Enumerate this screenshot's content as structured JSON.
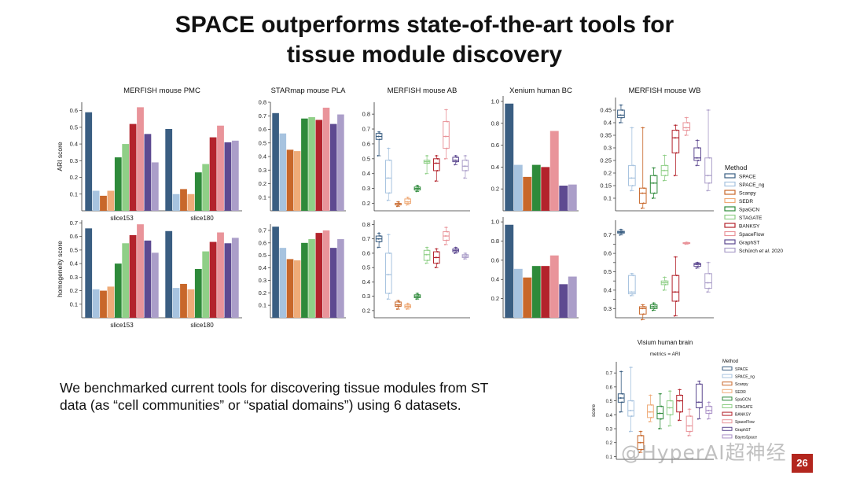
{
  "slide": {
    "title_line1": "SPACE outperforms state-of-the-art tools for",
    "title_line2": "tissue module discovery",
    "body_line1": "We benchmarked current tools for discovering tissue modules from ST",
    "body_line2": "data (as “cell communities” or “spatial domains”) using 6 datasets.",
    "page_number": "26",
    "watermark": "@HyperAI超神经"
  },
  "colors": {
    "SPACE": "#3a5e82",
    "SPACE_ng": "#a7c3df",
    "Scanpy": "#c8672a",
    "SEDR": "#efab78",
    "SpaGCN": "#2e8a3a",
    "STAGATE": "#8fcf87",
    "BANKSY": "#b3232c",
    "SpaceFlow": "#e9949a",
    "GraphST": "#5e4a91",
    "Schurch": "#ab9ec9",
    "BayesSpace": "#a98fc7"
  },
  "legend": {
    "title": "Method",
    "items": [
      "SPACE",
      "SPACE_ng",
      "Scanpy",
      "SEDR",
      "SpaGCN",
      "STAGATE",
      "BANKSY",
      "SpaceFlow",
      "GraphST"
    ],
    "last_item_prefix": "Schürch ",
    "last_item_italic": "et al.",
    "last_item_suffix": " 2020"
  },
  "chart_data": [
    {
      "id": "pmc_ari",
      "type": "bar",
      "title": "MERFISH mouse PMC",
      "ylabel": "ARI score",
      "ylim": [
        0,
        0.65
      ],
      "yticks": [
        0.1,
        0.2,
        0.3,
        0.4,
        0.5,
        0.6
      ],
      "categories": [
        "slice153",
        "slice180"
      ],
      "series": [
        {
          "name": "SPACE",
          "values": [
            0.59,
            0.49
          ]
        },
        {
          "name": "SPACE_ng",
          "values": [
            0.12,
            0.1
          ]
        },
        {
          "name": "Scanpy",
          "values": [
            0.09,
            0.13
          ]
        },
        {
          "name": "SEDR",
          "values": [
            0.12,
            0.1
          ]
        },
        {
          "name": "SpaGCN",
          "values": [
            0.32,
            0.23
          ]
        },
        {
          "name": "STAGATE",
          "values": [
            0.4,
            0.28
          ]
        },
        {
          "name": "BANKSY",
          "values": [
            0.52,
            0.44
          ]
        },
        {
          "name": "SpaceFlow",
          "values": [
            0.62,
            0.51
          ]
        },
        {
          "name": "GraphST",
          "values": [
            0.46,
            0.41
          ]
        },
        {
          "name": "Schürch et al. 2020",
          "values": [
            0.29,
            0.42
          ]
        }
      ]
    },
    {
      "id": "pla_ari",
      "type": "bar",
      "title": "STARmap mouse PLA",
      "ylabel": "",
      "ylim": [
        0,
        0.8
      ],
      "yticks": [
        0.1,
        0.2,
        0.3,
        0.4,
        0.5,
        0.6,
        0.7,
        0.8
      ],
      "categories": [
        ""
      ],
      "series": [
        {
          "name": "SPACE",
          "values": [
            0.72
          ]
        },
        {
          "name": "SPACE_ng",
          "values": [
            0.57
          ]
        },
        {
          "name": "Scanpy",
          "values": [
            0.45
          ]
        },
        {
          "name": "SEDR",
          "values": [
            0.44
          ]
        },
        {
          "name": "SpaGCN",
          "values": [
            0.68
          ]
        },
        {
          "name": "STAGATE",
          "values": [
            0.69
          ]
        },
        {
          "name": "BANKSY",
          "values": [
            0.67
          ]
        },
        {
          "name": "SpaceFlow",
          "values": [
            0.76
          ]
        },
        {
          "name": "GraphST",
          "values": [
            0.64
          ]
        },
        {
          "name": "Schürch et al. 2020",
          "values": [
            0.71
          ]
        }
      ]
    },
    {
      "id": "ab_ari",
      "type": "box",
      "title": "MERFISH mouse AB",
      "ylabel": "",
      "ylim": [
        0.15,
        0.88
      ],
      "yticks": [
        0.2,
        0.3,
        0.4,
        0.5,
        0.6,
        0.7,
        0.8
      ],
      "series": [
        {
          "name": "SPACE",
          "min": 0.52,
          "q1": 0.63,
          "median": 0.65,
          "q3": 0.67,
          "max": 0.68
        },
        {
          "name": "SPACE_ng",
          "min": 0.22,
          "q1": 0.27,
          "median": 0.37,
          "q3": 0.49,
          "max": 0.57
        },
        {
          "name": "Scanpy",
          "min": 0.18,
          "q1": 0.19,
          "median": 0.19,
          "q3": 0.2,
          "max": 0.21
        },
        {
          "name": "SEDR",
          "min": 0.19,
          "q1": 0.2,
          "median": 0.21,
          "q3": 0.23,
          "max": 0.24
        },
        {
          "name": "SpaGCN",
          "min": 0.28,
          "q1": 0.29,
          "median": 0.3,
          "q3": 0.31,
          "max": 0.32
        },
        {
          "name": "STAGATE",
          "min": 0.4,
          "q1": 0.47,
          "median": 0.48,
          "q3": 0.49,
          "max": 0.52
        },
        {
          "name": "BANKSY",
          "min": 0.35,
          "q1": 0.42,
          "median": 0.47,
          "q3": 0.5,
          "max": 0.52
        },
        {
          "name": "SpaceFlow",
          "min": 0.5,
          "q1": 0.57,
          "median": 0.65,
          "q3": 0.75,
          "max": 0.83
        },
        {
          "name": "GraphST",
          "min": 0.46,
          "q1": 0.48,
          "median": 0.49,
          "q3": 0.51,
          "max": 0.52
        },
        {
          "name": "Schürch et al. 2020",
          "min": 0.37,
          "q1": 0.42,
          "median": 0.45,
          "q3": 0.49,
          "max": 0.52
        }
      ]
    },
    {
      "id": "bc_ari",
      "type": "bar",
      "title": "Xenium human BC",
      "ylabel": "",
      "ylim": [
        0,
        1.05
      ],
      "yticks": [
        0.2,
        0.4,
        0.6,
        0.8,
        1.0
      ],
      "tick_labels": [
        "0.2",
        "0.4",
        "0.6",
        "0.8",
        "1.0"
      ],
      "categories": [
        ""
      ],
      "series": [
        {
          "name": "SPACE",
          "values": [
            0.98
          ]
        },
        {
          "name": "SPACE_ng",
          "values": [
            0.42
          ]
        },
        {
          "name": "Scanpy",
          "values": [
            0.31
          ]
        },
        {
          "name": "SpaGCN",
          "values": [
            0.42
          ]
        },
        {
          "name": "BANKSY",
          "values": [
            0.4
          ]
        },
        {
          "name": "SpaceFlow",
          "values": [
            0.73
          ]
        },
        {
          "name": "GraphST",
          "values": [
            0.23
          ]
        },
        {
          "name": "Schürch et al. 2020",
          "values": [
            0.24
          ]
        }
      ]
    },
    {
      "id": "wb_ari",
      "type": "box",
      "title": "MERFISH mouse WB",
      "ylabel": "",
      "ylim": [
        0.05,
        0.5
      ],
      "yticks": [
        0.1,
        0.15,
        0.2,
        0.25,
        0.3,
        0.35,
        0.4,
        0.45
      ],
      "series": [
        {
          "name": "SPACE",
          "min": 0.4,
          "q1": 0.42,
          "median": 0.43,
          "q3": 0.45,
          "max": 0.47
        },
        {
          "name": "SPACE_ng",
          "min": 0.13,
          "q1": 0.15,
          "median": 0.18,
          "q3": 0.23,
          "max": 0.38
        },
        {
          "name": "Scanpy",
          "min": 0.06,
          "q1": 0.08,
          "median": 0.12,
          "q3": 0.14,
          "max": 0.38
        },
        {
          "name": "SpaGCN",
          "min": 0.1,
          "q1": 0.12,
          "median": 0.16,
          "q3": 0.19,
          "max": 0.22
        },
        {
          "name": "STAGATE",
          "min": 0.17,
          "q1": 0.19,
          "median": 0.21,
          "q3": 0.23,
          "max": 0.27
        },
        {
          "name": "BANKSY",
          "min": 0.19,
          "q1": 0.28,
          "median": 0.34,
          "q3": 0.37,
          "max": 0.39
        },
        {
          "name": "SpaceFlow",
          "min": 0.35,
          "q1": 0.37,
          "median": 0.38,
          "q3": 0.4,
          "max": 0.42
        },
        {
          "name": "GraphST",
          "min": 0.23,
          "q1": 0.25,
          "median": 0.26,
          "q3": 0.3,
          "max": 0.33
        },
        {
          "name": "Schürch et al. 2020",
          "min": 0.13,
          "q1": 0.16,
          "median": 0.19,
          "q3": 0.26,
          "max": 0.45
        }
      ]
    },
    {
      "id": "pmc_hom",
      "type": "bar",
      "title": "",
      "ylabel": "homogeneity score",
      "ylim": [
        0,
        0.72
      ],
      "yticks": [
        0.1,
        0.2,
        0.3,
        0.4,
        0.5,
        0.6,
        0.7
      ],
      "categories": [
        "slice153",
        "slice180"
      ],
      "series": [
        {
          "name": "SPACE",
          "values": [
            0.66,
            0.64
          ]
        },
        {
          "name": "SPACE_ng",
          "values": [
            0.21,
            0.22
          ]
        },
        {
          "name": "Scanpy",
          "values": [
            0.2,
            0.25
          ]
        },
        {
          "name": "SEDR",
          "values": [
            0.23,
            0.21
          ]
        },
        {
          "name": "SpaGCN",
          "values": [
            0.4,
            0.36
          ]
        },
        {
          "name": "STAGATE",
          "values": [
            0.55,
            0.49
          ]
        },
        {
          "name": "BANKSY",
          "values": [
            0.61,
            0.56
          ]
        },
        {
          "name": "SpaceFlow",
          "values": [
            0.69,
            0.63
          ]
        },
        {
          "name": "GraphST",
          "values": [
            0.57,
            0.55
          ]
        },
        {
          "name": "Schürch et al. 2020",
          "values": [
            0.48,
            0.59
          ]
        }
      ]
    },
    {
      "id": "pla_hom",
      "type": "bar",
      "title": "",
      "ylabel": "",
      "ylim": [
        0,
        0.75
      ],
      "yticks": [
        0.1,
        0.2,
        0.3,
        0.4,
        0.5,
        0.6,
        0.7
      ],
      "categories": [
        ""
      ],
      "series": [
        {
          "name": "SPACE",
          "values": [
            0.73
          ]
        },
        {
          "name": "SPACE_ng",
          "values": [
            0.56
          ]
        },
        {
          "name": "Scanpy",
          "values": [
            0.47
          ]
        },
        {
          "name": "SEDR",
          "values": [
            0.46
          ]
        },
        {
          "name": "SpaGCN",
          "values": [
            0.6
          ]
        },
        {
          "name": "STAGATE",
          "values": [
            0.63
          ]
        },
        {
          "name": "BANKSY",
          "values": [
            0.68
          ]
        },
        {
          "name": "SpaceFlow",
          "values": [
            0.7
          ]
        },
        {
          "name": "GraphST",
          "values": [
            0.56
          ]
        },
        {
          "name": "Schürch et al. 2020",
          "values": [
            0.63
          ]
        }
      ]
    },
    {
      "id": "ab_hom",
      "type": "box",
      "title": "",
      "ylabel": "",
      "ylim": [
        0.15,
        0.83
      ],
      "yticks": [
        0.2,
        0.3,
        0.4,
        0.5,
        0.6,
        0.7,
        0.8
      ],
      "series": [
        {
          "name": "SPACE",
          "min": 0.64,
          "q1": 0.68,
          "median": 0.7,
          "q3": 0.72,
          "max": 0.74
        },
        {
          "name": "SPACE_ng",
          "min": 0.28,
          "q1": 0.32,
          "median": 0.45,
          "q3": 0.6,
          "max": 0.73
        },
        {
          "name": "Scanpy",
          "min": 0.21,
          "q1": 0.23,
          "median": 0.24,
          "q3": 0.26,
          "max": 0.27
        },
        {
          "name": "SEDR",
          "min": 0.21,
          "q1": 0.22,
          "median": 0.23,
          "q3": 0.24,
          "max": 0.25
        },
        {
          "name": "SpaGCN",
          "min": 0.28,
          "q1": 0.29,
          "median": 0.3,
          "q3": 0.31,
          "max": 0.32
        },
        {
          "name": "STAGATE",
          "min": 0.53,
          "q1": 0.55,
          "median": 0.59,
          "q3": 0.62,
          "max": 0.64
        },
        {
          "name": "BANKSY",
          "min": 0.5,
          "q1": 0.53,
          "median": 0.57,
          "q3": 0.61,
          "max": 0.63
        },
        {
          "name": "SpaceFlow",
          "min": 0.66,
          "q1": 0.69,
          "median": 0.72,
          "q3": 0.75,
          "max": 0.78
        },
        {
          "name": "GraphST",
          "min": 0.6,
          "q1": 0.61,
          "median": 0.62,
          "q3": 0.63,
          "max": 0.64
        },
        {
          "name": "Schürch et al. 2020",
          "min": 0.56,
          "q1": 0.57,
          "median": 0.58,
          "q3": 0.59,
          "max": 0.6
        }
      ]
    },
    {
      "id": "bc_hom",
      "type": "bar",
      "title": "",
      "ylabel": "",
      "ylim": [
        0,
        1.05
      ],
      "yticks": [
        0.2,
        0.4,
        0.6,
        0.8,
        1.0
      ],
      "tick_labels": [
        "0.2",
        "0.4",
        "0.6",
        "0.8",
        "1.0"
      ],
      "categories": [
        ""
      ],
      "series": [
        {
          "name": "SPACE",
          "values": [
            0.97
          ]
        },
        {
          "name": "SPACE_ng",
          "values": [
            0.51
          ]
        },
        {
          "name": "Scanpy",
          "values": [
            0.42
          ]
        },
        {
          "name": "SpaGCN",
          "values": [
            0.54
          ]
        },
        {
          "name": "BANKSY",
          "values": [
            0.54
          ]
        },
        {
          "name": "SpaceFlow",
          "values": [
            0.65
          ]
        },
        {
          "name": "GraphST",
          "values": [
            0.35
          ]
        },
        {
          "name": "Schürch et al. 2020",
          "values": [
            0.43
          ]
        }
      ]
    },
    {
      "id": "wb_hom",
      "type": "box",
      "title": "",
      "ylabel": "",
      "ylim": [
        0.25,
        0.78
      ],
      "yticks": [
        0.3,
        0.35,
        0.4,
        0.45,
        0.5,
        0.55,
        0.6,
        0.65,
        0.7
      ],
      "tick_labels": [
        "0.3",
        "",
        "0.4",
        "",
        "0.5",
        "",
        "0.6",
        "",
        "0.7"
      ],
      "series": [
        {
          "name": "SPACE",
          "min": 0.7,
          "q1": 0.71,
          "median": 0.715,
          "q3": 0.72,
          "max": 0.73
        },
        {
          "name": "SPACE_ng",
          "min": 0.37,
          "q1": 0.38,
          "median": 0.39,
          "q3": 0.48,
          "max": 0.49
        },
        {
          "name": "Scanpy",
          "min": 0.24,
          "q1": 0.27,
          "median": 0.3,
          "q3": 0.31,
          "max": 0.32
        },
        {
          "name": "SpaGCN",
          "min": 0.29,
          "q1": 0.3,
          "median": 0.31,
          "q3": 0.32,
          "max": 0.33
        },
        {
          "name": "STAGATE",
          "min": 0.4,
          "q1": 0.43,
          "median": 0.44,
          "q3": 0.45,
          "max": 0.47
        },
        {
          "name": "BANKSY",
          "min": 0.26,
          "q1": 0.34,
          "median": 0.39,
          "q3": 0.48,
          "max": 0.58
        },
        {
          "name": "SpaceFlow",
          "min": 0.65,
          "q1": 0.653,
          "median": 0.655,
          "q3": 0.658,
          "max": 0.66
        },
        {
          "name": "GraphST",
          "min": 0.52,
          "q1": 0.53,
          "median": 0.54,
          "q3": 0.545,
          "max": 0.55
        },
        {
          "name": "Schürch et al. 2020",
          "min": 0.39,
          "q1": 0.41,
          "median": 0.44,
          "q3": 0.49,
          "max": 0.55
        }
      ]
    },
    {
      "id": "visium_ari",
      "type": "box",
      "title": "Visium human brain",
      "subtitle": "metrics = ARI",
      "ylabel": "score",
      "ylim": [
        0.08,
        0.78
      ],
      "yticks": [
        0.1,
        0.2,
        0.3,
        0.4,
        0.5,
        0.6,
        0.7
      ],
      "legend_title": "Method",
      "legend": [
        "SPACE",
        "SPACE_ng",
        "Scanpy",
        "SEDR",
        "SpaGCN",
        "STAGATE",
        "BANKSY",
        "SpaceFlow",
        "GraphST",
        "BayesSpace"
      ],
      "series": [
        {
          "name": "SPACE",
          "min": 0.42,
          "q1": 0.49,
          "median": 0.52,
          "q3": 0.55,
          "max": 0.71
        },
        {
          "name": "SPACE_ng",
          "min": 0.28,
          "q1": 0.39,
          "median": 0.43,
          "q3": 0.5,
          "max": 0.74
        },
        {
          "name": "Scanpy",
          "min": 0.13,
          "q1": 0.15,
          "median": 0.2,
          "q3": 0.25,
          "max": 0.28
        },
        {
          "name": "SEDR",
          "min": 0.35,
          "q1": 0.38,
          "median": 0.42,
          "q3": 0.47,
          "max": 0.54
        },
        {
          "name": "SpaGCN",
          "min": 0.3,
          "q1": 0.37,
          "median": 0.41,
          "q3": 0.46,
          "max": 0.55
        },
        {
          "name": "STAGATE",
          "min": 0.32,
          "q1": 0.4,
          "median": 0.45,
          "q3": 0.5,
          "max": 0.57
        },
        {
          "name": "BANKSY",
          "min": 0.36,
          "q1": 0.42,
          "median": 0.5,
          "q3": 0.54,
          "max": 0.58
        },
        {
          "name": "SpaceFlow",
          "min": 0.25,
          "q1": 0.28,
          "median": 0.32,
          "q3": 0.39,
          "max": 0.44
        },
        {
          "name": "GraphST",
          "min": 0.37,
          "q1": 0.45,
          "median": 0.49,
          "q3": 0.62,
          "max": 0.64
        },
        {
          "name": "BayesSpace",
          "min": 0.37,
          "q1": 0.41,
          "median": 0.43,
          "q3": 0.46,
          "max": 0.49
        }
      ]
    }
  ]
}
